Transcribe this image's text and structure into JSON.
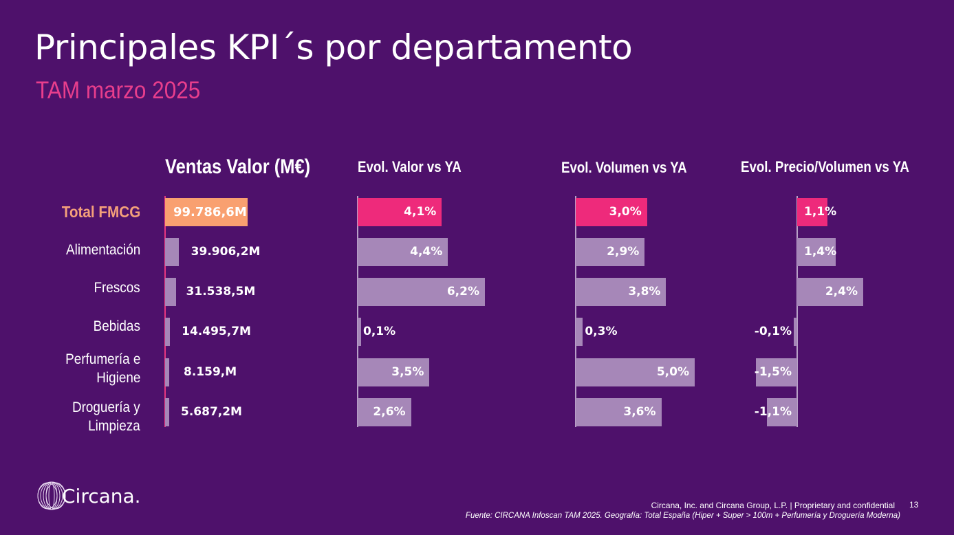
{
  "header": {
    "title": "Principales KPI´s por departamento",
    "subtitle": "TAM marzo 2025"
  },
  "colors": {
    "background": "#4e116b",
    "total_sales": "#f9a070",
    "total_evol": "#ee2a7b",
    "category_bar": "#a687b8",
    "subtitle": "#e83e8c",
    "total_label": "#f4a07a"
  },
  "chart_data": {
    "type": "bar",
    "categories": [
      "Total FMCG",
      "Alimentación",
      "Frescos",
      "Bebidas",
      "Perfumería e Higiene",
      "Droguería y Limpieza"
    ],
    "category_lines": [
      [
        "Total FMCG"
      ],
      [
        "Alimentación"
      ],
      [
        "Frescos"
      ],
      [
        "Bebidas"
      ],
      [
        "Perfumería e",
        "Higiene"
      ],
      [
        "Droguería y",
        "Limpieza"
      ]
    ],
    "series": [
      {
        "name": "Ventas Valor (M€)",
        "values": [
          99786.6,
          39906.2,
          31538.5,
          14495.7,
          8159.0,
          5687.2
        ],
        "labels": [
          "99.786,6M",
          "39.906,2M",
          "31.538,5M",
          "14.495,7M",
          "8.159,M",
          "5.687,2M"
        ]
      },
      {
        "name": "Evol. Valor vs YA",
        "values": [
          4.1,
          4.4,
          6.2,
          0.1,
          3.5,
          2.6
        ],
        "labels": [
          "4,1%",
          "4,4%",
          "6,2%",
          "0,1%",
          "3,5%",
          "2,6%"
        ]
      },
      {
        "name": "Evol. Volumen vs YA",
        "values": [
          3.0,
          2.9,
          3.8,
          0.3,
          5.0,
          3.6
        ],
        "labels": [
          "3,0%",
          "2,9%",
          "3,8%",
          "0,3%",
          "5,0%",
          "3,6%"
        ]
      },
      {
        "name": "Evol. Precio/Volumen vs YA",
        "values": [
          1.1,
          1.4,
          2.4,
          -0.1,
          -1.5,
          -1.1
        ],
        "labels": [
          "1,1%",
          "1,4%",
          "2,4%",
          "-0,1%",
          "-1,5%",
          "-1,1%"
        ]
      }
    ],
    "orientation": "horizontal",
    "grid": false,
    "legend": "none"
  },
  "footer": {
    "logo_text": "Circana.",
    "legal": "Circana, Inc. and Circana Group, L.P. |  Proprietary and confidential",
    "page_number": "13",
    "source": "Fuente: CIRCANA Infoscan TAM 2025. Geografía: Total España (Hiper + Super > 100m + Perfumería y Droguería Moderna)"
  }
}
